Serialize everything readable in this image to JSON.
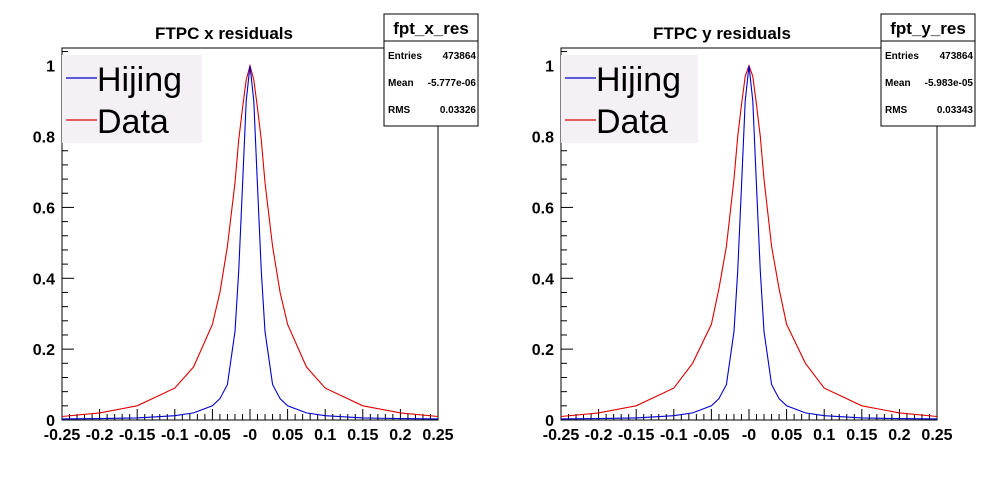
{
  "chart_data": [
    {
      "type": "line",
      "title": "FTPC x residuals",
      "xlabel": "",
      "ylabel": "",
      "xlim": [
        -0.25,
        0.25
      ],
      "ylim": [
        0,
        1.05
      ],
      "x_ticks": [
        "-0.25",
        "-0.2",
        "-0.15",
        "-0.1",
        "-0.05",
        "-0",
        "0.05",
        "0.1",
        "0.15",
        "0.2",
        "0.25"
      ],
      "y_ticks": [
        "0",
        "0.2",
        "0.4",
        "0.6",
        "0.8",
        "1"
      ],
      "grid": false,
      "legend_position": "top-left",
      "x": [
        -0.25,
        -0.2,
        -0.15,
        -0.1,
        -0.075,
        -0.05,
        -0.04,
        -0.03,
        -0.02,
        -0.015,
        -0.01,
        -0.005,
        0,
        0.005,
        0.01,
        0.015,
        0.02,
        0.03,
        0.04,
        0.05,
        0.075,
        0.1,
        0.15,
        0.2,
        0.25
      ],
      "series": [
        {
          "name": "Hijing",
          "color": "#0000cc",
          "values": [
            0.003,
            0.004,
            0.006,
            0.012,
            0.02,
            0.04,
            0.06,
            0.1,
            0.25,
            0.42,
            0.66,
            0.9,
            1.0,
            0.9,
            0.66,
            0.42,
            0.25,
            0.1,
            0.06,
            0.04,
            0.02,
            0.012,
            0.006,
            0.004,
            0.003
          ]
        },
        {
          "name": "Data",
          "color": "#dd0000",
          "values": [
            0.01,
            0.02,
            0.04,
            0.09,
            0.15,
            0.27,
            0.36,
            0.49,
            0.67,
            0.79,
            0.88,
            0.96,
            1.0,
            0.96,
            0.88,
            0.79,
            0.67,
            0.49,
            0.36,
            0.27,
            0.15,
            0.09,
            0.04,
            0.02,
            0.01
          ]
        }
      ],
      "stats": {
        "name": "fpt_x_res",
        "rows": [
          {
            "label": "Entries",
            "value": "473864"
          },
          {
            "label": "Mean",
            "value": "-5.777e-06"
          },
          {
            "label": "RMS",
            "value": "0.03326"
          }
        ]
      }
    },
    {
      "type": "line",
      "title": "FTPC y residuals",
      "xlabel": "",
      "ylabel": "",
      "xlim": [
        -0.25,
        0.25
      ],
      "ylim": [
        0,
        1.05
      ],
      "x_ticks": [
        "-0.25",
        "-0.2",
        "-0.15",
        "-0.1",
        "-0.05",
        "-0",
        "0.05",
        "0.1",
        "0.15",
        "0.2",
        "0.25"
      ],
      "y_ticks": [
        "0",
        "0.2",
        "0.4",
        "0.6",
        "0.8",
        "1"
      ],
      "grid": false,
      "legend_position": "top-left",
      "x": [
        -0.25,
        -0.2,
        -0.15,
        -0.1,
        -0.075,
        -0.05,
        -0.04,
        -0.03,
        -0.02,
        -0.015,
        -0.01,
        -0.005,
        0,
        0.005,
        0.01,
        0.015,
        0.02,
        0.03,
        0.04,
        0.05,
        0.075,
        0.1,
        0.15,
        0.2,
        0.25
      ],
      "series": [
        {
          "name": "Hijing",
          "color": "#0000cc",
          "values": [
            0.003,
            0.004,
            0.006,
            0.012,
            0.02,
            0.04,
            0.06,
            0.1,
            0.25,
            0.42,
            0.66,
            0.9,
            1.0,
            0.9,
            0.66,
            0.42,
            0.25,
            0.1,
            0.06,
            0.04,
            0.02,
            0.012,
            0.006,
            0.004,
            0.003
          ]
        },
        {
          "name": "Data",
          "color": "#dd0000",
          "values": [
            0.01,
            0.02,
            0.04,
            0.09,
            0.16,
            0.27,
            0.37,
            0.49,
            0.68,
            0.8,
            0.89,
            0.97,
            1.0,
            0.97,
            0.89,
            0.8,
            0.68,
            0.49,
            0.37,
            0.27,
            0.16,
            0.09,
            0.04,
            0.02,
            0.01
          ]
        }
      ],
      "stats": {
        "name": "fpt_y_res",
        "rows": [
          {
            "label": "Entries",
            "value": "473864"
          },
          {
            "label": "Mean",
            "value": "-5.983e-05"
          },
          {
            "label": "RMS",
            "value": "0.03343"
          }
        ]
      }
    }
  ]
}
